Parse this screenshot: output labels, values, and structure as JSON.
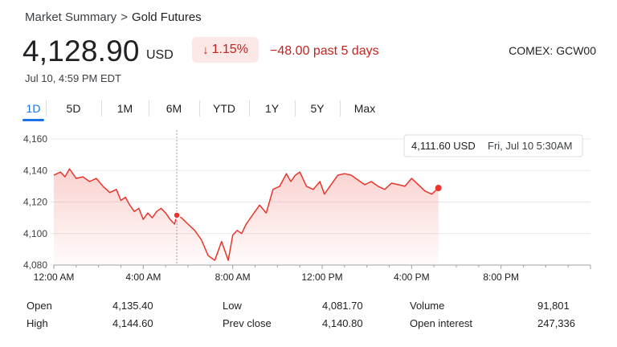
{
  "breadcrumb": {
    "root": "Market Summary",
    "separator": ">",
    "current": "Gold Futures"
  },
  "quote": {
    "price": "4,128.90",
    "currency": "USD",
    "change_arrow": "↓",
    "change_percent": "1.15%",
    "change_abs": "−48.00 past 5 days",
    "ticker": "COMEX: GCW00",
    "timestamp": "Jul 10, 4:59 PM EDT"
  },
  "tabs": [
    {
      "label": "1D",
      "active": true
    },
    {
      "label": "5D"
    },
    {
      "label": "1M"
    },
    {
      "label": "6M"
    },
    {
      "label": "YTD"
    },
    {
      "label": "1Y"
    },
    {
      "label": "5Y"
    },
    {
      "label": "Max"
    }
  ],
  "tooltip": {
    "price": "4,111.60 USD",
    "time": "Fri, Jul 10 5:30AM"
  },
  "colors": {
    "line": "#e8352b",
    "negative": "#c5221f",
    "badge_bg": "#fce8e6",
    "accent": "#1a73e8"
  },
  "chart_data": {
    "type": "area",
    "ylim": [
      4080,
      4160
    ],
    "yticks": [
      "4,160",
      "4,140",
      "4,120",
      "4,100",
      "4,080"
    ],
    "ytick_values": [
      4160,
      4140,
      4120,
      4100,
      4080
    ],
    "xlim": [
      0,
      24
    ],
    "xticks": [
      "12:00 AM",
      "4:00 AM",
      "8:00 AM",
      "12:00 PM",
      "4:00 PM",
      "8:00 PM"
    ],
    "xtick_values": [
      0,
      4,
      8,
      12,
      16,
      20
    ],
    "hover_x": 5.5,
    "hover_value": 4111.6,
    "end_value": 4128.9,
    "series": [
      {
        "x": [
          0,
          0.3,
          0.5,
          0.7,
          1.0,
          1.3,
          1.6,
          1.9,
          2.2,
          2.5,
          2.8,
          3.0,
          3.2,
          3.4,
          3.6,
          3.8,
          4.0,
          4.2,
          4.4,
          4.6,
          4.8,
          5.0,
          5.2,
          5.4,
          5.5,
          5.7,
          6.0,
          6.3,
          6.6,
          6.9,
          7.2,
          7.5,
          7.8,
          8.0,
          8.2,
          8.4,
          8.6,
          8.9,
          9.2,
          9.5,
          9.8,
          10.1,
          10.4,
          10.6,
          10.8,
          11.0,
          11.3,
          11.6,
          11.9,
          12.1,
          12.4,
          12.7,
          13.0,
          13.3,
          13.6,
          13.9,
          14.2,
          14.5,
          14.8,
          15.1,
          15.4,
          15.7,
          16.0,
          16.3,
          16.6,
          16.9,
          17.2
        ],
        "y": [
          4137,
          4139,
          4136,
          4141,
          4135,
          4136,
          4133,
          4135,
          4130,
          4126,
          4128,
          4121,
          4123,
          4118,
          4114,
          4116,
          4109,
          4113,
          4110,
          4114,
          4116,
          4113,
          4109,
          4106,
          4111.6,
          4110,
          4106,
          4102,
          4096,
          4086,
          4083,
          4095,
          4083,
          4099,
          4102,
          4100,
          4106,
          4112,
          4118,
          4113,
          4128,
          4130,
          4138,
          4133,
          4137,
          4139,
          4130,
          4128,
          4133,
          4125,
          4131,
          4137,
          4138,
          4137,
          4134,
          4131,
          4133,
          4130,
          4128,
          4132,
          4131,
          4130,
          4135,
          4131,
          4127,
          4125,
          4128.9
        ]
      }
    ]
  }
}
